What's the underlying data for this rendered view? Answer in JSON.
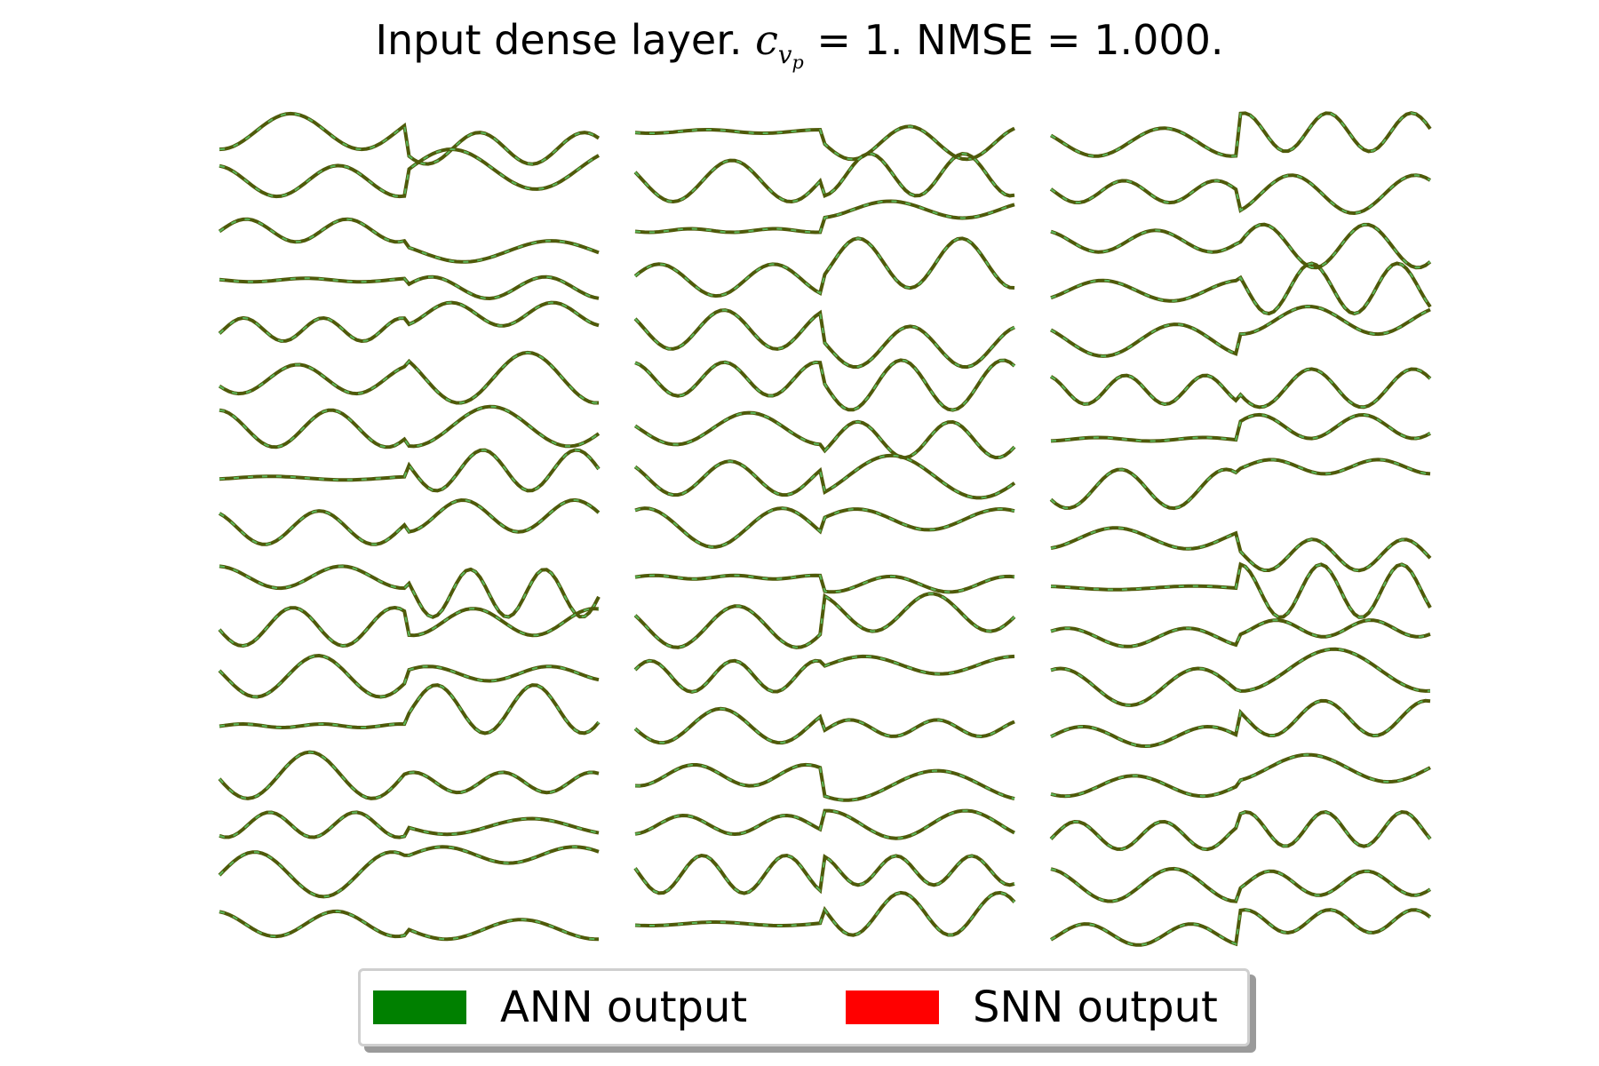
{
  "title": {
    "prefix": "Input dense layer. ",
    "math_var": "c",
    "math_sub": "v",
    "math_subsub": "p",
    "math_rest": " = 1",
    "suffix": ". NMSE = 1.000."
  },
  "legend": {
    "items": [
      {
        "label": "ANN output",
        "color": "#008000"
      },
      {
        "label": "SNN output",
        "color": "#ff0000"
      }
    ]
  },
  "colors": {
    "ann_line": "#4f5a0a",
    "snn_dash": "#5cb85c"
  },
  "chart_data": {
    "type": "line",
    "title": "Input dense layer. c_{v_p} = 1. NMSE = 1.000.",
    "grid": false,
    "axes_visible": false,
    "panels": 3,
    "traces_per_panel": 17,
    "legend_placement": "bottom-center",
    "x": [
      0,
      1,
      2,
      3,
      4,
      5,
      6,
      7,
      8,
      9,
      10,
      11,
      12,
      13,
      14,
      15,
      16,
      17,
      18,
      19,
      20
    ],
    "series": [
      {
        "name": "ANN output",
        "color": "#008000"
      },
      {
        "name": "SNN output",
        "color": "#ff0000"
      }
    ]
  }
}
